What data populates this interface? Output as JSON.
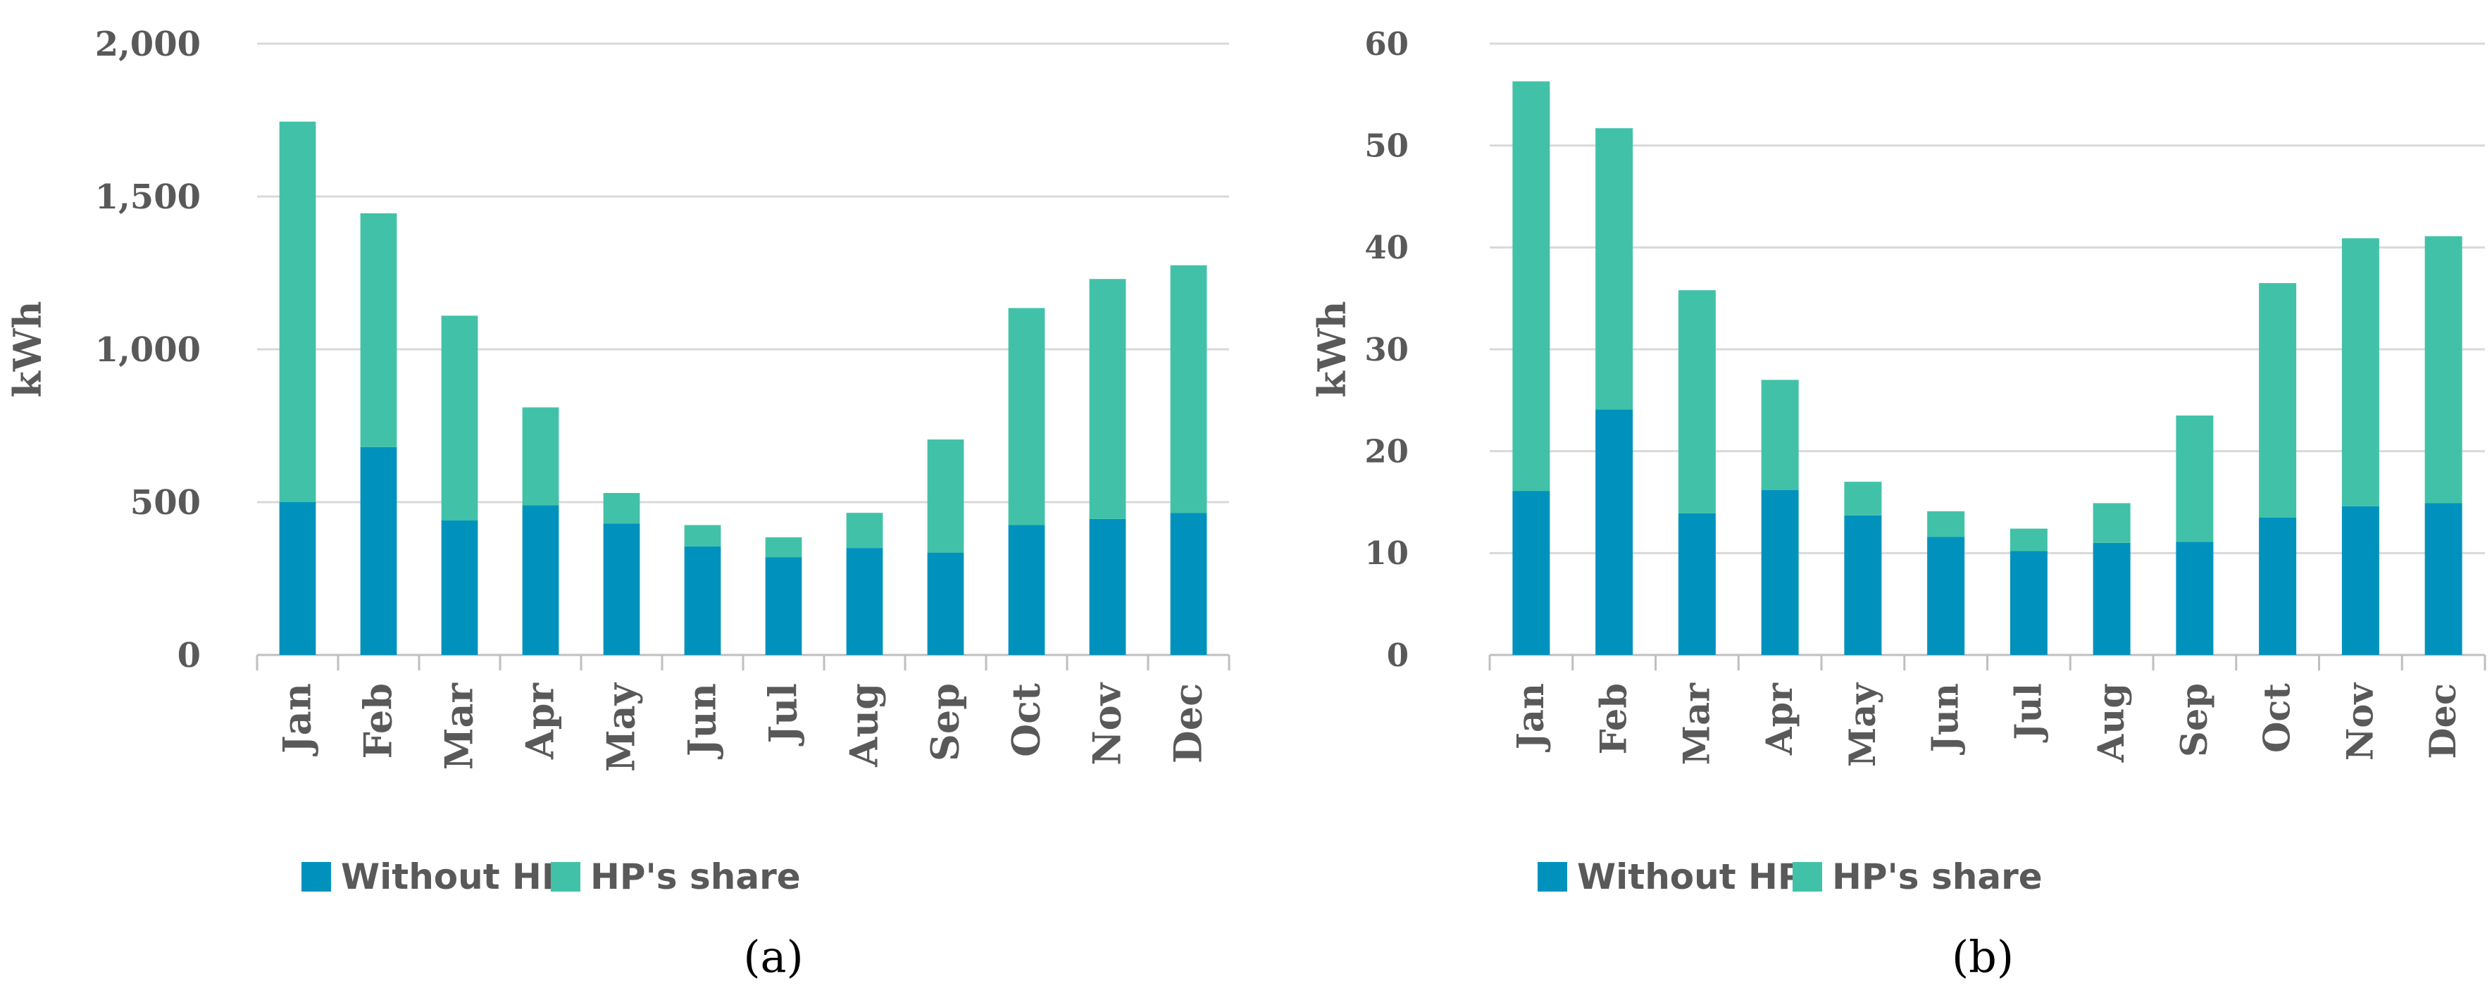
{
  "colors": {
    "without_hp": "#0092BC",
    "hp_share": "#41C2A8",
    "grid": "#D9D9D9",
    "axis": "#BFBFBF",
    "text": "#595959"
  },
  "chart_data": [
    {
      "type": "bar",
      "stacked": true,
      "caption": "(a)",
      "ylabel": "kWh",
      "ylim": [
        0,
        2000
      ],
      "yticks": [
        0,
        500,
        1000,
        1500,
        2000
      ],
      "ytick_labels": [
        "0",
        "500",
        "1,000",
        "1,500",
        "2,000"
      ],
      "categories": [
        "Jan",
        "Feb",
        "Mar",
        "Apr",
        "May",
        "Jun",
        "Jul",
        "Aug",
        "Sep",
        "Oct",
        "Nov",
        "Dec"
      ],
      "series": [
        {
          "name": "Without HP",
          "values": [
            500,
            680,
            440,
            490,
            430,
            355,
            320,
            350,
            335,
            425,
            445,
            465
          ]
        },
        {
          "name": "HP's share",
          "values": [
            1245,
            765,
            670,
            320,
            100,
            70,
            65,
            115,
            370,
            710,
            785,
            810
          ]
        }
      ],
      "legend": "bottom",
      "grid": true
    },
    {
      "type": "bar",
      "stacked": true,
      "caption": "(b)",
      "ylabel": "kWh",
      "ylim": [
        0,
        60
      ],
      "yticks": [
        0,
        10,
        20,
        30,
        40,
        50,
        60
      ],
      "ytick_labels": [
        "0",
        "10",
        "20",
        "30",
        "40",
        "50",
        "60"
      ],
      "categories": [
        "Jan",
        "Feb",
        "Mar",
        "Apr",
        "May",
        "Jun",
        "Jul",
        "Aug",
        "Sep",
        "Oct",
        "Nov",
        "Dec"
      ],
      "series": [
        {
          "name": "Without HP",
          "values": [
            16.1,
            24.1,
            13.9,
            16.2,
            13.7,
            11.6,
            10.2,
            11.0,
            11.1,
            13.5,
            14.6,
            14.9
          ]
        },
        {
          "name": "HP's share",
          "values": [
            40.2,
            27.6,
            21.9,
            10.8,
            3.3,
            2.5,
            2.2,
            3.9,
            12.4,
            23.0,
            26.3,
            26.2
          ]
        }
      ],
      "legend": "bottom",
      "grid": true
    }
  ]
}
